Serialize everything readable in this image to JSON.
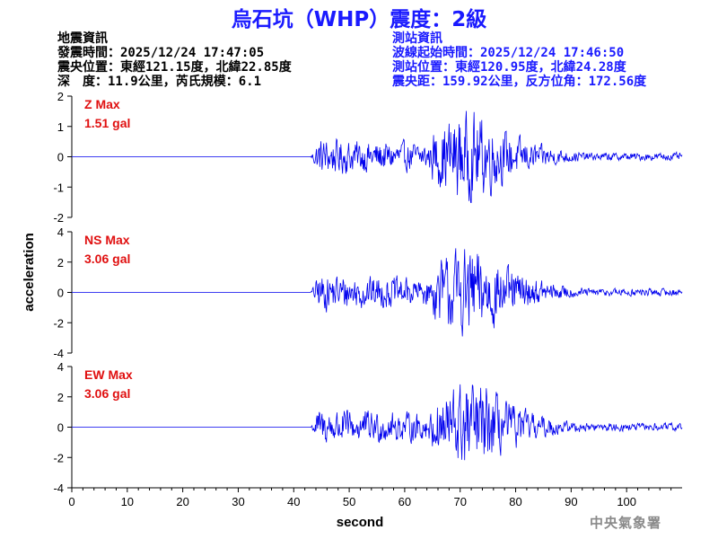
{
  "title": "烏石坑（WHP）震度：2級",
  "quake_info": {
    "heading": "地震資訊",
    "time": "發震時間：2025/12/24 17:47:05",
    "location": "震央位置：東經121.15度，北緯22.85度",
    "depth_mag": "深　度：11.9公里，芮氏規模：6.1"
  },
  "station_info": {
    "heading": "測站資訊",
    "wave_start": "波線起始時間：2025/12/24 17:46:50",
    "location": "測站位置：東經120.95度，北緯24.28度",
    "distance": "震央距：159.92公里，反方位角：172.56度"
  },
  "credit": "中央氣象署",
  "colors": {
    "title": "#1a1aff",
    "trace": "#0000ee",
    "max_label": "#e01010",
    "station_info": "#1a1aff"
  },
  "chart_data": [
    {
      "type": "line",
      "component": "Z",
      "max_label": "Z Max",
      "max_value": "1.51 gal",
      "ylim": [
        -2,
        2
      ],
      "yticks": [
        -2,
        -1,
        0,
        1,
        2
      ],
      "peak": 1.51,
      "xlim": [
        0,
        110
      ],
      "onset_s": 43,
      "strong_start_s": 65,
      "strong_end_s": 78
    },
    {
      "type": "line",
      "component": "NS",
      "max_label": "NS Max",
      "max_value": "3.06 gal",
      "ylim": [
        -4,
        4
      ],
      "yticks": [
        -4,
        -2,
        0,
        2,
        4
      ],
      "peak": 3.06,
      "xlim": [
        0,
        110
      ],
      "onset_s": 43,
      "strong_start_s": 65,
      "strong_end_s": 78
    },
    {
      "type": "line",
      "component": "EW",
      "max_label": "EW Max",
      "max_value": "3.06 gal",
      "ylim": [
        -4,
        4
      ],
      "yticks": [
        -4,
        -2,
        0,
        2,
        4
      ],
      "peak": 3.06,
      "xlim": [
        0,
        110
      ],
      "onset_s": 43,
      "strong_start_s": 65,
      "strong_end_s": 78
    }
  ],
  "axes": {
    "ylabel": "acceleration",
    "xlabel": "second",
    "xticks": [
      0,
      10,
      20,
      30,
      40,
      50,
      60,
      70,
      80,
      90,
      100
    ]
  }
}
